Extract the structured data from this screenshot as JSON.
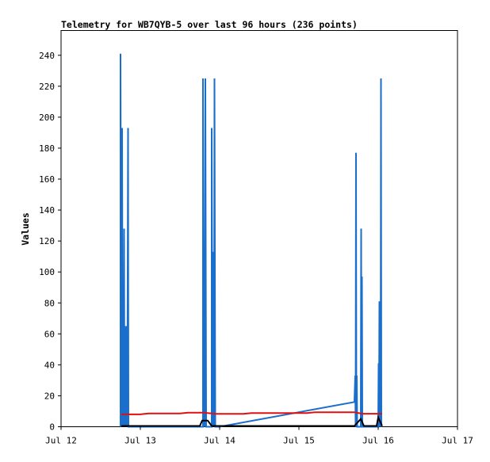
{
  "chart_data": {
    "type": "line",
    "title": "Telemetry for WB7QYB-5 over last 96 hours (236 points)",
    "xlabel": "",
    "ylabel": "Values",
    "xlim": [
      0,
      5
    ],
    "ylim": [
      0,
      256
    ],
    "x_ticks": [
      {
        "value": 0,
        "label": "Jul 12"
      },
      {
        "value": 1,
        "label": "Jul 13"
      },
      {
        "value": 2,
        "label": "Jul 14"
      },
      {
        "value": 3,
        "label": "Jul 15"
      },
      {
        "value": 4,
        "label": "Jul 16"
      },
      {
        "value": 5,
        "label": "Jul 17"
      }
    ],
    "y_ticks": [
      0,
      20,
      40,
      60,
      80,
      100,
      120,
      140,
      160,
      180,
      200,
      220,
      240
    ],
    "grid": false,
    "series": [
      {
        "color": "#1a6ecc",
        "points": [
          [
            0.75,
            0
          ],
          [
            0.75,
            241
          ],
          [
            0.76,
            0
          ],
          [
            0.77,
            193
          ],
          [
            0.775,
            48
          ],
          [
            0.78,
            0
          ],
          [
            0.785,
            65
          ],
          [
            0.79,
            0
          ],
          [
            0.795,
            128
          ],
          [
            0.8,
            0
          ],
          [
            0.805,
            65
          ],
          [
            0.81,
            0
          ],
          [
            0.815,
            65
          ],
          [
            0.82,
            0
          ],
          [
            0.83,
            65
          ],
          [
            0.835,
            0
          ],
          [
            0.845,
            193
          ],
          [
            0.85,
            0
          ],
          [
            1.79,
            0
          ],
          [
            1.79,
            225
          ],
          [
            1.8,
            0
          ],
          [
            1.805,
            65
          ],
          [
            1.81,
            0
          ],
          [
            1.82,
            225
          ],
          [
            1.83,
            0
          ],
          [
            1.9,
            0
          ],
          [
            1.9,
            193
          ],
          [
            1.91,
            0
          ],
          [
            1.92,
            113
          ],
          [
            1.93,
            0
          ],
          [
            1.935,
            225
          ],
          [
            1.945,
            0
          ],
          [
            2.0,
            0
          ],
          [
            3.7,
            16
          ],
          [
            3.71,
            33
          ],
          [
            3.715,
            0
          ],
          [
            3.72,
            177
          ],
          [
            3.725,
            0
          ],
          [
            3.73,
            33
          ],
          [
            3.735,
            0
          ],
          [
            3.78,
            0
          ],
          [
            3.785,
            128
          ],
          [
            3.79,
            0
          ],
          [
            3.795,
            97
          ],
          [
            3.8,
            0
          ],
          [
            4.0,
            0
          ],
          [
            4.005,
            41
          ],
          [
            4.01,
            0
          ],
          [
            4.015,
            81
          ],
          [
            4.02,
            0
          ],
          [
            4.025,
            65
          ],
          [
            4.03,
            0
          ],
          [
            4.035,
            225
          ],
          [
            4.04,
            0
          ]
        ]
      },
      {
        "color": "#e01010",
        "points": [
          [
            0.76,
            8
          ],
          [
            0.85,
            8
          ],
          [
            1.0,
            8
          ],
          [
            1.1,
            8.6
          ],
          [
            1.5,
            8.6
          ],
          [
            1.6,
            9.1
          ],
          [
            1.8,
            9.1
          ],
          [
            1.95,
            8.3
          ],
          [
            2.3,
            8.3
          ],
          [
            2.4,
            8.8
          ],
          [
            2.8,
            8.8
          ],
          [
            3.1,
            8.8
          ],
          [
            3.2,
            9.3
          ],
          [
            3.7,
            9.3
          ],
          [
            3.8,
            8.4
          ],
          [
            4.05,
            8.4
          ]
        ]
      },
      {
        "color": "#000000",
        "points": [
          [
            0.76,
            0.5
          ],
          [
            1.75,
            0.5
          ],
          [
            1.78,
            4
          ],
          [
            1.85,
            4
          ],
          [
            1.9,
            0.5
          ],
          [
            3.7,
            0.5
          ],
          [
            3.78,
            5
          ],
          [
            3.82,
            0.5
          ],
          [
            3.98,
            0.5
          ],
          [
            4.0,
            6
          ],
          [
            4.05,
            0.5
          ]
        ]
      }
    ]
  }
}
